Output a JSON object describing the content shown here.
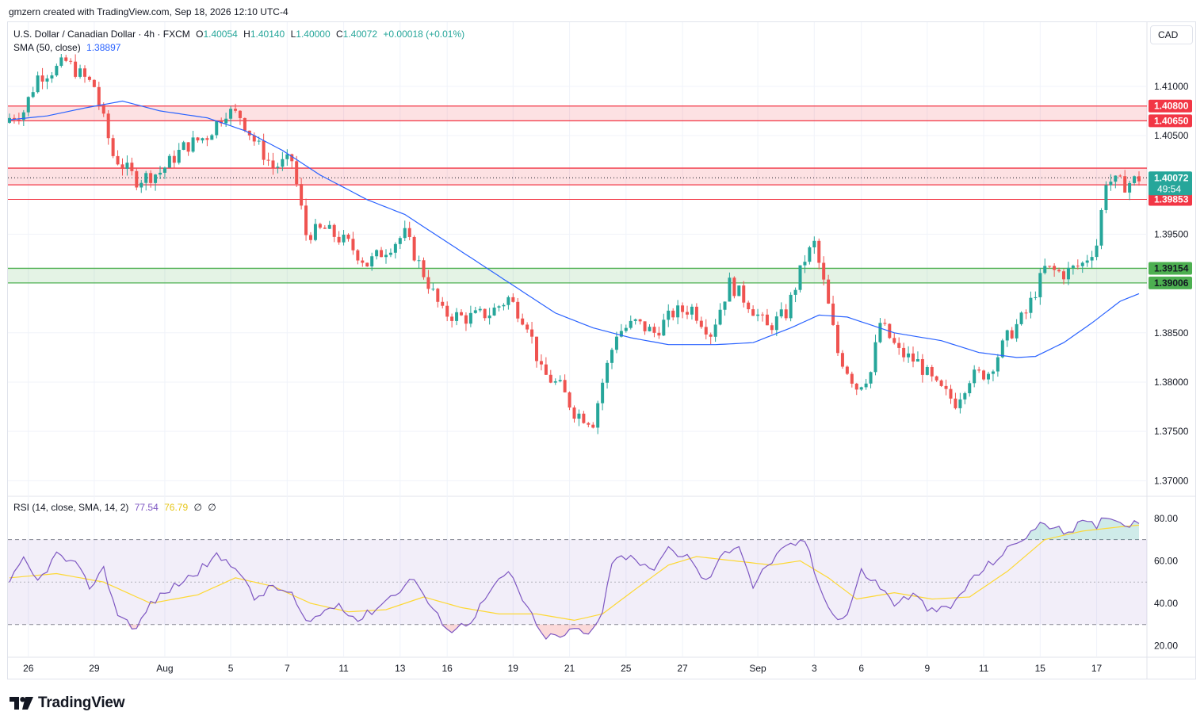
{
  "header": {
    "text": "gmzern created with TradingView.com, Sep 18, 2026 12:10 UTC-4"
  },
  "legend": {
    "symbol": "U.S. Dollar / Canadian Dollar · 4h · FXCM",
    "open_label": "O",
    "open": "1.40054",
    "high_label": "H",
    "high": "1.40140",
    "low_label": "L",
    "low": "1.40000",
    "close_label": "C",
    "close": "1.40072",
    "change": "+0.00018 (+0.01%)",
    "sma_label": "SMA (50, close)",
    "sma_value": "1.38897"
  },
  "rsi_legend": {
    "label": "RSI (14, close, SMA, 14, 2)",
    "rsi": "77.54",
    "rsi_sma": "76.79",
    "ph1": "∅",
    "ph2": "∅"
  },
  "currency": "CAD",
  "footer": {
    "brand": "TradingView"
  },
  "colors": {
    "up": "#26a69a",
    "down": "#ef5350",
    "sma": "#2962ff",
    "rsi": "#7e57c2",
    "rsi_sma": "#fdd835",
    "resistance_zone": "#f23645",
    "support_zone": "#4caf50",
    "rsi_band": "#7e57c2"
  },
  "chart_data": {
    "type": "candlestick",
    "interval": "4h",
    "price_ylim": [
      1.3685,
      1.4165
    ],
    "price_ticks": [
      "1.41000",
      "1.40500",
      "1.39500",
      "1.38500",
      "1.38000",
      "1.37500",
      "1.37000"
    ],
    "last_price": "1.40072",
    "countdown": "49:54",
    "zones": [
      {
        "kind": "resistance",
        "top": 1.408,
        "bottom": 1.4065,
        "top_label": "1.40800",
        "bottom_label": "1.40650"
      },
      {
        "kind": "resistance",
        "top": 1.4017,
        "bottom": 1.40001,
        "top_label": "",
        "bottom_label": "1.40001"
      },
      {
        "kind": "resistance-line",
        "value": 1.39853,
        "label": "1.39853"
      },
      {
        "kind": "support",
        "top": 1.39154,
        "bottom": 1.39006,
        "top_label": "1.39154",
        "bottom_label": "1.39006"
      }
    ],
    "x_labels": [
      "26",
      "29",
      "Aug",
      "5",
      "7",
      "11",
      "13",
      "16",
      "19",
      "21",
      "25",
      "27",
      "Sep",
      "3",
      "6",
      "9",
      "11",
      "15",
      "17"
    ],
    "x_label_bars": [
      4,
      18,
      33,
      47,
      59,
      71,
      83,
      93,
      107,
      119,
      131,
      143,
      159,
      171,
      181,
      195,
      207,
      219,
      231
    ],
    "close_path_anchors": [
      [
        0,
        1.4068
      ],
      [
        3,
        1.4075
      ],
      [
        6,
        1.411
      ],
      [
        10,
        1.4118
      ],
      [
        12,
        1.4125
      ],
      [
        15,
        1.4112
      ],
      [
        18,
        1.41
      ],
      [
        22,
        1.403
      ],
      [
        27,
        1.4005
      ],
      [
        32,
        1.4013
      ],
      [
        37,
        1.4038
      ],
      [
        42,
        1.405
      ],
      [
        46,
        1.4075
      ],
      [
        49,
        1.407
      ],
      [
        52,
        1.4045
      ],
      [
        56,
        1.4018
      ],
      [
        60,
        1.4025
      ],
      [
        63,
        1.395
      ],
      [
        67,
        1.3955
      ],
      [
        72,
        1.394
      ],
      [
        76,
        1.392
      ],
      [
        80,
        1.3935
      ],
      [
        84,
        1.395
      ],
      [
        88,
        1.391
      ],
      [
        92,
        1.387
      ],
      [
        97,
        1.3865
      ],
      [
        102,
        1.387
      ],
      [
        106,
        1.3885
      ],
      [
        110,
        1.386
      ],
      [
        113,
        1.381
      ],
      [
        117,
        1.3795
      ],
      [
        120,
        1.377
      ],
      [
        124,
        1.376
      ],
      [
        126,
        1.38
      ],
      [
        129,
        1.385
      ],
      [
        133,
        1.386
      ],
      [
        137,
        1.385
      ],
      [
        141,
        1.387
      ],
      [
        145,
        1.3875
      ],
      [
        149,
        1.385
      ],
      [
        153,
        1.39
      ],
      [
        157,
        1.388
      ],
      [
        161,
        1.3855
      ],
      [
        165,
        1.387
      ],
      [
        169,
        1.3925
      ],
      [
        171,
        1.394
      ],
      [
        173,
        1.39
      ],
      [
        176,
        1.383
      ],
      [
        180,
        1.3795
      ],
      [
        183,
        1.381
      ],
      [
        185,
        1.386
      ],
      [
        189,
        1.383
      ],
      [
        193,
        1.382
      ],
      [
        197,
        1.3795
      ],
      [
        201,
        1.378
      ],
      [
        204,
        1.3805
      ],
      [
        208,
        1.381
      ],
      [
        212,
        1.3845
      ],
      [
        216,
        1.387
      ],
      [
        220,
        1.3915
      ],
      [
        224,
        1.391
      ],
      [
        228,
        1.392
      ],
      [
        231,
        1.394
      ],
      [
        233,
        1.4005
      ],
      [
        237,
        1.4
      ],
      [
        240,
        1.4007
      ]
    ],
    "sma_anchors": [
      [
        0,
        1.4066
      ],
      [
        8,
        1.407
      ],
      [
        16,
        1.4078
      ],
      [
        24,
        1.4085
      ],
      [
        32,
        1.4075
      ],
      [
        42,
        1.4068
      ],
      [
        50,
        1.4055
      ],
      [
        58,
        1.4035
      ],
      [
        66,
        1.401
      ],
      [
        76,
        1.3985
      ],
      [
        84,
        1.397
      ],
      [
        92,
        1.3945
      ],
      [
        100,
        1.392
      ],
      [
        108,
        1.3895
      ],
      [
        116,
        1.387
      ],
      [
        124,
        1.3855
      ],
      [
        132,
        1.3845
      ],
      [
        140,
        1.3838
      ],
      [
        150,
        1.3838
      ],
      [
        158,
        1.384
      ],
      [
        166,
        1.3855
      ],
      [
        172,
        1.3868
      ],
      [
        178,
        1.3866
      ],
      [
        188,
        1.385
      ],
      [
        198,
        1.3842
      ],
      [
        206,
        1.383
      ],
      [
        214,
        1.3825
      ],
      [
        218,
        1.3826
      ],
      [
        224,
        1.384
      ],
      [
        230,
        1.386
      ],
      [
        236,
        1.3882
      ],
      [
        240,
        1.38897
      ]
    ],
    "rsi": {
      "ylim": [
        15,
        90
      ],
      "levels": [
        30,
        50,
        70
      ],
      "ticks": [
        "80.00",
        "60.00",
        "40.00",
        "20.00"
      ],
      "value": 77.54,
      "sma_value": 76.79,
      "anchors": [
        [
          0,
          50
        ],
        [
          3,
          60
        ],
        [
          6,
          50
        ],
        [
          10,
          63
        ],
        [
          14,
          58
        ],
        [
          17,
          48
        ],
        [
          20,
          56
        ],
        [
          23,
          35
        ],
        [
          27,
          28
        ],
        [
          30,
          40
        ],
        [
          35,
          48
        ],
        [
          40,
          55
        ],
        [
          44,
          62
        ],
        [
          48,
          58
        ],
        [
          52,
          42
        ],
        [
          56,
          48
        ],
        [
          60,
          44
        ],
        [
          63,
          30
        ],
        [
          66,
          35
        ],
        [
          70,
          40
        ],
        [
          74,
          32
        ],
        [
          78,
          38
        ],
        [
          82,
          45
        ],
        [
          86,
          52
        ],
        [
          90,
          36
        ],
        [
          94,
          27
        ],
        [
          98,
          32
        ],
        [
          102,
          45
        ],
        [
          106,
          55
        ],
        [
          110,
          38
        ],
        [
          113,
          25
        ],
        [
          117,
          24
        ],
        [
          120,
          28
        ],
        [
          123,
          25
        ],
        [
          126,
          37
        ],
        [
          128,
          60
        ],
        [
          132,
          63
        ],
        [
          136,
          55
        ],
        [
          140,
          65
        ],
        [
          144,
          62
        ],
        [
          148,
          50
        ],
        [
          152,
          64
        ],
        [
          155,
          68
        ],
        [
          158,
          48
        ],
        [
          161,
          58
        ],
        [
          165,
          66
        ],
        [
          169,
          70
        ],
        [
          172,
          48
        ],
        [
          176,
          32
        ],
        [
          178,
          35
        ],
        [
          181,
          55
        ],
        [
          184,
          50
        ],
        [
          188,
          40
        ],
        [
          192,
          44
        ],
        [
          196,
          36
        ],
        [
          200,
          38
        ],
        [
          204,
          50
        ],
        [
          208,
          58
        ],
        [
          212,
          65
        ],
        [
          216,
          72
        ],
        [
          220,
          78
        ],
        [
          224,
          73
        ],
        [
          228,
          78
        ],
        [
          231,
          76
        ],
        [
          233,
          82
        ],
        [
          236,
          78
        ],
        [
          240,
          77.54
        ]
      ],
      "sma_anchors": [
        [
          0,
          52
        ],
        [
          10,
          54
        ],
        [
          20,
          50
        ],
        [
          30,
          40
        ],
        [
          40,
          44
        ],
        [
          48,
          52
        ],
        [
          56,
          48
        ],
        [
          64,
          40
        ],
        [
          72,
          36
        ],
        [
          80,
          37
        ],
        [
          88,
          43
        ],
        [
          96,
          38
        ],
        [
          104,
          35
        ],
        [
          112,
          35
        ],
        [
          120,
          32
        ],
        [
          126,
          35
        ],
        [
          132,
          45
        ],
        [
          140,
          58
        ],
        [
          146,
          62
        ],
        [
          154,
          60
        ],
        [
          162,
          58
        ],
        [
          168,
          60
        ],
        [
          174,
          52
        ],
        [
          180,
          42
        ],
        [
          188,
          45
        ],
        [
          196,
          42
        ],
        [
          204,
          43
        ],
        [
          212,
          55
        ],
        [
          220,
          70
        ],
        [
          228,
          74
        ],
        [
          236,
          76
        ],
        [
          240,
          76.79
        ]
      ]
    }
  }
}
